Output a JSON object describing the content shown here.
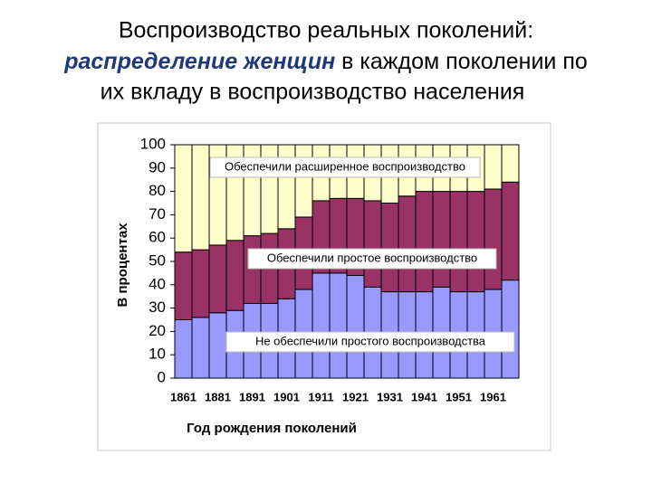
{
  "chart_data": {
    "type": "stacked_bar",
    "title": [
      "Воспроизводство реальных поколений:",
      "распределение женщин",
      "в каждом поколении по",
      "их вкладу в воспроизводство населения"
    ],
    "x_label": "Год рождения поколений",
    "y_label": "В процентах",
    "categories": [
      "1861",
      null,
      "1881",
      null,
      "1891",
      null,
      "1901",
      null,
      "1911",
      null,
      "1921",
      null,
      "1931",
      null,
      "1941",
      null,
      "1951",
      null,
      "1961",
      null
    ],
    "series": [
      {
        "name": "Не обеспечили простого воспроизводства",
        "color": "#9999ff",
        "values": [
          25,
          26,
          28,
          29,
          32,
          32,
          34,
          38,
          45,
          45,
          44,
          39,
          37,
          37,
          37,
          39,
          37,
          37,
          38,
          42
        ]
      },
      {
        "name": "Обеспечили простое воспроизводство",
        "color": "#993366",
        "values": [
          29,
          29,
          29,
          30,
          29,
          30,
          30,
          31,
          31,
          32,
          33,
          37,
          38,
          41,
          43,
          41,
          43,
          43,
          43,
          42
        ]
      },
      {
        "name": "Обеспечили расширенное воспроизводство",
        "color": "#ffffcc",
        "values": [
          46,
          45,
          43,
          41,
          39,
          38,
          36,
          31,
          24,
          23,
          23,
          24,
          25,
          22,
          20,
          20,
          20,
          20,
          19,
          16
        ]
      }
    ],
    "ylim": [
      0,
      100
    ],
    "yticks": [
      0,
      10,
      20,
      30,
      40,
      50,
      60,
      70,
      80,
      90,
      100
    ]
  }
}
